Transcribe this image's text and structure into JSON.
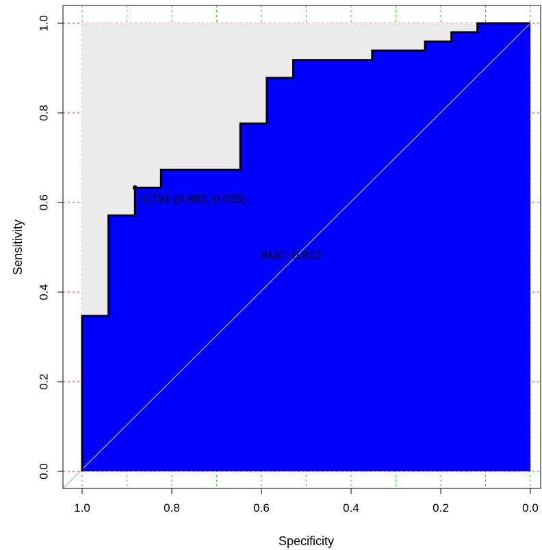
{
  "chart_data": {
    "type": "line",
    "title": "",
    "xlabel": "Specificity",
    "ylabel": "Sensitivity",
    "xlim": [
      1.0,
      0.0
    ],
    "ylim": [
      0.0,
      1.0
    ],
    "x_reversed": true,
    "grid": true,
    "grid_colors": {
      "x": "#22cc22",
      "y": "#e02020"
    },
    "xticks": [
      1.0,
      0.8,
      0.6,
      0.4,
      0.2,
      0.0
    ],
    "xtick_labels": [
      "1.0",
      "0.8",
      "0.6",
      "0.4",
      "0.2",
      "0.0"
    ],
    "xgrid": [
      1.0,
      0.9,
      0.8,
      0.7,
      0.6,
      0.5,
      0.4,
      0.3,
      0.2,
      0.1,
      0.0
    ],
    "yticks": [
      0.0,
      0.2,
      0.4,
      0.6,
      0.8,
      1.0
    ],
    "ytick_labels": [
      "0.0",
      "0.2",
      "0.4",
      "0.6",
      "0.8",
      "1.0"
    ],
    "ygrid": [
      0.0,
      0.2,
      0.4,
      0.6,
      0.8,
      1.0
    ],
    "colors": {
      "auc_fill": "#0000ff",
      "max_area": "#ebebeb",
      "curve": "#000000",
      "diagonal": "#b3b3b3"
    },
    "series": [
      {
        "name": "",
        "points": [
          [
            1.0,
            0.0
          ],
          [
            1.0,
            0.347
          ],
          [
            0.941,
            0.347
          ],
          [
            0.941,
            0.571
          ],
          [
            0.882,
            0.571
          ],
          [
            0.882,
            0.633
          ],
          [
            0.824,
            0.633
          ],
          [
            0.824,
            0.673
          ],
          [
            0.647,
            0.673
          ],
          [
            0.647,
            0.776
          ],
          [
            0.588,
            0.776
          ],
          [
            0.588,
            0.878
          ],
          [
            0.529,
            0.878
          ],
          [
            0.529,
            0.918
          ],
          [
            0.353,
            0.918
          ],
          [
            0.353,
            0.939
          ],
          [
            0.235,
            0.939
          ],
          [
            0.235,
            0.959
          ],
          [
            0.176,
            0.959
          ],
          [
            0.176,
            0.98
          ],
          [
            0.118,
            0.98
          ],
          [
            0.118,
            1.0
          ],
          [
            0.0,
            1.0
          ]
        ]
      }
    ],
    "threshold_point": {
      "x": 0.882,
      "y": 0.633,
      "label": "0.791 (0.882, 0.633)"
    },
    "auc_label": {
      "text": "AUC: 0.812",
      "x": 0.5,
      "y": 0.483
    }
  }
}
